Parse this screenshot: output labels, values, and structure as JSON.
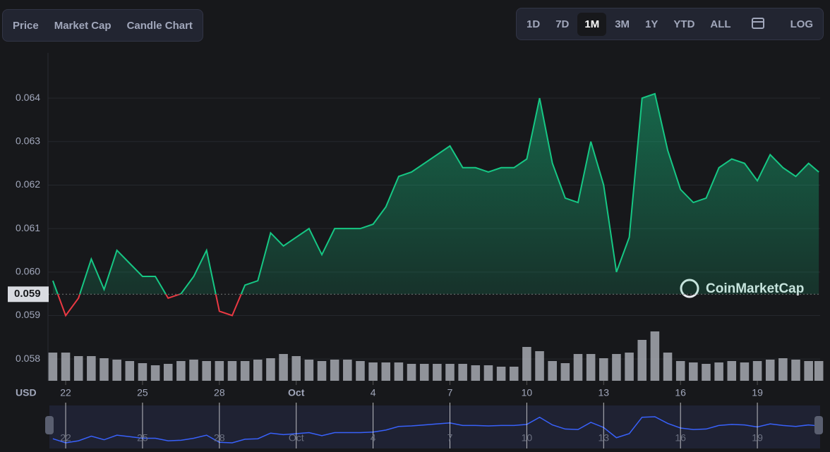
{
  "chart_data": {
    "type": "line",
    "tabs": [
      "Price",
      "Market Cap",
      "Candle Chart"
    ],
    "ranges": [
      "1D",
      "7D",
      "1M",
      "3M",
      "1Y",
      "YTD",
      "ALL"
    ],
    "active_range": "1M",
    "log_button": "LOG",
    "y_axis_label": "USD",
    "watermark": "CoinMarketCap",
    "x": [
      0.5,
      1,
      1.5,
      2,
      2.5,
      3,
      3.5,
      4,
      4.5,
      5,
      5.5,
      6,
      6.5,
      7,
      7.5,
      8,
      8.5,
      9,
      9.5,
      10,
      10.5,
      11,
      11.5,
      12,
      12.5,
      13,
      13.5,
      14,
      14.5,
      15,
      15.5,
      16,
      16.5,
      17,
      17.5,
      18,
      18.5,
      19,
      19.5,
      20,
      20.5,
      21,
      21.5,
      22,
      22.5,
      23,
      23.5,
      24,
      24.5,
      25,
      25.5,
      26,
      26.5,
      27,
      27.5,
      28,
      28.5,
      29,
      29.5,
      30,
      30.4
    ],
    "series": [
      {
        "name": "Price",
        "color": "#16c784",
        "color_down": "#ea3943",
        "values": [
          0.0598,
          0.059,
          0.0594,
          0.0603,
          0.0596,
          0.0605,
          0.0602,
          0.0599,
          0.0599,
          0.0594,
          0.0595,
          0.0599,
          0.0605,
          0.0591,
          0.059,
          0.0597,
          0.0598,
          0.0609,
          0.0606,
          0.0608,
          0.061,
          0.0604,
          0.061,
          0.061,
          0.061,
          0.0611,
          0.0615,
          0.0622,
          0.0623,
          0.0625,
          0.0627,
          0.0629,
          0.0624,
          0.0624,
          0.0623,
          0.0624,
          0.0624,
          0.0626,
          0.064,
          0.0625,
          0.0617,
          0.0616,
          0.063,
          0.062,
          0.06,
          0.0608,
          0.064,
          0.0641,
          0.0628,
          0.0619,
          0.0616,
          0.0617,
          0.0624,
          0.0626,
          0.0625,
          0.0621,
          0.0627,
          0.0624,
          0.0622,
          0.0625,
          0.0623
        ]
      }
    ],
    "volume": [
      40,
      40,
      35,
      35,
      32,
      30,
      28,
      25,
      22,
      24,
      28,
      30,
      28,
      28,
      28,
      28,
      30,
      32,
      38,
      35,
      30,
      28,
      30,
      30,
      28,
      26,
      26,
      26,
      24,
      24,
      24,
      24,
      24,
      22,
      22,
      20,
      20,
      48,
      42,
      28,
      25,
      38,
      38,
      32,
      38,
      40,
      58,
      70,
      40,
      28,
      26,
      24,
      26,
      28,
      26,
      28,
      30,
      32,
      30,
      28,
      28
    ],
    "baseline": {
      "value": 0.05949,
      "label": "0.059"
    },
    "xlim": [
      0.31,
      30.45
    ],
    "xticks": [
      {
        "value": 1,
        "label": "22"
      },
      {
        "value": 4,
        "label": "25"
      },
      {
        "value": 7,
        "label": "28"
      },
      {
        "value": 10,
        "label": "Oct"
      },
      {
        "value": 13,
        "label": "4"
      },
      {
        "value": 16,
        "label": "7"
      },
      {
        "value": 19,
        "label": "10"
      },
      {
        "value": 22,
        "label": "13"
      },
      {
        "value": 25,
        "label": "16"
      },
      {
        "value": 28,
        "label": "19"
      }
    ],
    "ylim": [
      0.0575,
      0.06504
    ],
    "yticks": [
      {
        "value": 0.058,
        "label": "0.058"
      },
      {
        "value": 0.059,
        "label": "0.059"
      },
      {
        "value": 0.06,
        "label": "0.060"
      },
      {
        "value": 0.061,
        "label": "0.061"
      },
      {
        "value": 0.062,
        "label": "0.062"
      },
      {
        "value": 0.063,
        "label": "0.063"
      },
      {
        "value": 0.064,
        "label": "0.064"
      }
    ],
    "grid": true
  }
}
